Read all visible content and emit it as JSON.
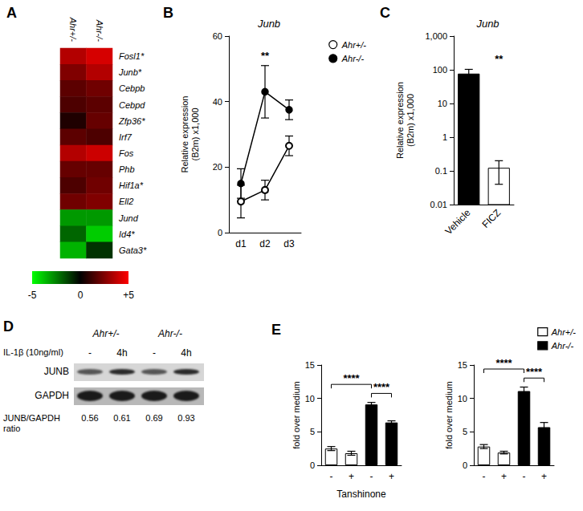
{
  "chart_data": [
    {
      "type": "heatmap",
      "title": "A",
      "x": [
        "Ahr+/-",
        "Ahr-/-"
      ],
      "categories": [
        "Fosl1*",
        "Junb*",
        "Cebpb",
        "Cebpd",
        "Zfp36*",
        "Irf7",
        "Fos",
        "Phb",
        "Hif1a*",
        "Ell2",
        "Jund",
        "Id4*",
        "Gata3*"
      ],
      "cells": [
        [
          3.5,
          4.2
        ],
        [
          2.5,
          3.5
        ],
        [
          1.8,
          2.2
        ],
        [
          1.5,
          1.8
        ],
        [
          0.6,
          2.0
        ],
        [
          1.8,
          1.5
        ],
        [
          3.5,
          4.0
        ],
        [
          2.0,
          2.0
        ],
        [
          1.5,
          2.2
        ],
        [
          2.2,
          2.5
        ],
        [
          -3.0,
          -3.0
        ],
        [
          -2.0,
          -4.0
        ],
        [
          -3.5,
          -1.0
        ]
      ],
      "colorbar_range": [
        -5,
        5
      ],
      "colorbar_ticks": [
        -5,
        0,
        {
          "value": 5,
          "label": "+5"
        }
      ]
    },
    {
      "type": "line",
      "title": "B",
      "subtitle": "Junb",
      "categories": [
        "d1",
        "d2",
        "d3"
      ],
      "series": [
        {
          "name": "Ahr+/-",
          "color": "#000000",
          "marker": "open_circle",
          "values": [
            9.5,
            13,
            26.5
          ],
          "errors": [
            5,
            3,
            3
          ]
        },
        {
          "name": "Ahr-/-",
          "color": "#000000",
          "marker": "circle",
          "values": [
            15,
            43,
            37.5
          ],
          "errors": [
            4.5,
            8,
            3
          ]
        }
      ],
      "ylabel": "Relative expression\n(B2m) x1,000",
      "ylim": [
        0,
        60
      ],
      "yticks": [
        0,
        20,
        40,
        60
      ],
      "legend": "top-right",
      "annotations": [
        {
          "text": "**",
          "category": "d2"
        }
      ]
    },
    {
      "type": "bar",
      "title": "C",
      "subtitle": "Junb",
      "categories": [
        "Vehicle",
        "FICZ"
      ],
      "values": [
        75,
        0.12
      ],
      "errors": [
        28,
        0.08
      ],
      "colors": [
        "#000000",
        "#ffffff"
      ],
      "log": "y",
      "ylabel": "Relative expression\n(B2m) x1,000",
      "ylim": [
        0.01,
        1000
      ],
      "yticks": [
        0.01,
        0.1,
        1,
        10,
        100,
        {
          "value": 1000,
          "label": "1,000"
        }
      ],
      "annotations": [
        {
          "text": "**",
          "category": "FICZ"
        }
      ]
    },
    {
      "type": "bar",
      "title": "E",
      "categories": [
        "-",
        "+",
        "-",
        "+"
      ],
      "xlabel": "Tanshinone",
      "stacked": true,
      "series": [
        {
          "name": "Ahr+/-",
          "color": "#ffffff",
          "values": [
            2.5,
            1.8,
            null,
            null
          ],
          "errors": [
            0.3,
            0.3,
            null,
            null
          ]
        },
        {
          "name": "Ahr-/-",
          "color": "#000000",
          "values": [
            null,
            null,
            9.1,
            6.4
          ],
          "errors": [
            null,
            null,
            0.3,
            0.25
          ]
        }
      ],
      "ylabel": "fold over medium",
      "ylim": [
        0,
        15
      ],
      "yticks": [
        0,
        5,
        10,
        15
      ],
      "legend": "none",
      "annotations": [
        {
          "text": "****",
          "between": [
            0,
            2
          ]
        },
        {
          "text": "****",
          "between": [
            2,
            3
          ]
        }
      ]
    },
    {
      "type": "bar",
      "categories": [
        "-",
        "+",
        "-",
        "+"
      ],
      "stacked": true,
      "series": [
        {
          "name": "Ahr+/-",
          "color": "#ffffff",
          "values": [
            2.8,
            1.9,
            null,
            null
          ],
          "errors": [
            0.3,
            0.2,
            null,
            null
          ]
        },
        {
          "name": "Ahr-/-",
          "color": "#000000",
          "values": [
            null,
            null,
            11.1,
            5.7
          ],
          "errors": [
            null,
            null,
            0.6,
            0.7
          ]
        }
      ],
      "ylabel": "fold over medium",
      "ylim": [
        0,
        15
      ],
      "yticks": [
        0,
        5,
        10,
        15
      ],
      "legend": "top-right",
      "annotations": [
        {
          "text": "****",
          "between": [
            0,
            2
          ]
        },
        {
          "text": "****",
          "between": [
            2,
            3
          ]
        }
      ]
    }
  ],
  "blot": {
    "title": "D",
    "groups": [
      "Ahr+/-",
      "Ahr-/-"
    ],
    "treatment_label": "IL-1β (10ng/ml)",
    "lanes": [
      "-",
      "4h",
      "-",
      "4h"
    ],
    "bands": [
      "JUNB",
      "GAPDH"
    ],
    "ratio_label": "JUNB/GAPDH\nratio",
    "ratios": [
      0.56,
      0.61,
      0.69,
      0.93
    ]
  }
}
